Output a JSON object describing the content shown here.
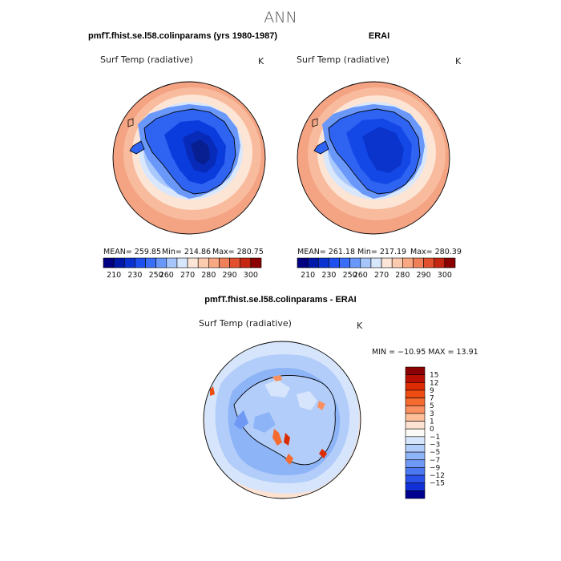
{
  "figure": {
    "title": "ANN",
    "panel1_title": "pmfT.fhist.se.l58.colinparams (yrs 1980-1987)",
    "panel2_title": "ERAI",
    "diff_title": "pmfT.fhist.se.l58.colinparams - ERAI"
  },
  "panels": [
    {
      "variable": "Surf Temp (radiative)",
      "units": "K",
      "stats": {
        "mean": "MEAN= 259.85",
        "min": "Min= 214.86",
        "max": "Max= 280.75"
      }
    },
    {
      "variable": "Surf Temp (radiative)",
      "units": "K",
      "stats": {
        "mean": "MEAN= 261.18",
        "min": "Min= 217.19",
        "max": "Max= 280.39"
      }
    }
  ],
  "diff_panel": {
    "variable": "Surf Temp (radiative)",
    "units": "K",
    "range": "MIN = −10.95 MAX =  13.91"
  },
  "colorbar_temp": {
    "colors": [
      "#000080",
      "#0018a8",
      "#0a32d0",
      "#1e50f0",
      "#3a6ef8",
      "#6a98fa",
      "#a6c6fb",
      "#d8e8fc",
      "#fde6d8",
      "#fbcbb0",
      "#f8a882",
      "#f08058",
      "#e2502e",
      "#c42612",
      "#8b0000"
    ],
    "labels": [
      "210",
      "230",
      "250",
      "260",
      "270",
      "280",
      "290",
      "300"
    ]
  },
  "colorbar_diff": {
    "colors": [
      "#8b0000",
      "#b80e00",
      "#dc2b00",
      "#ef4c12",
      "#f56a2e",
      "#fa9060",
      "#fdbe98",
      "#fde2d2",
      "#fdfaf6",
      "#d6e5fb",
      "#b2cdf9",
      "#8eb4f8",
      "#6f99f5",
      "#4c79f2",
      "#2a52ea",
      "#1230d8",
      "#000090"
    ],
    "labels": [
      "15",
      "12",
      "9",
      "7",
      "5",
      "3",
      "1",
      "0",
      "−1",
      "−3",
      "−5",
      "−7",
      "−9",
      "−12",
      "−15"
    ]
  }
}
